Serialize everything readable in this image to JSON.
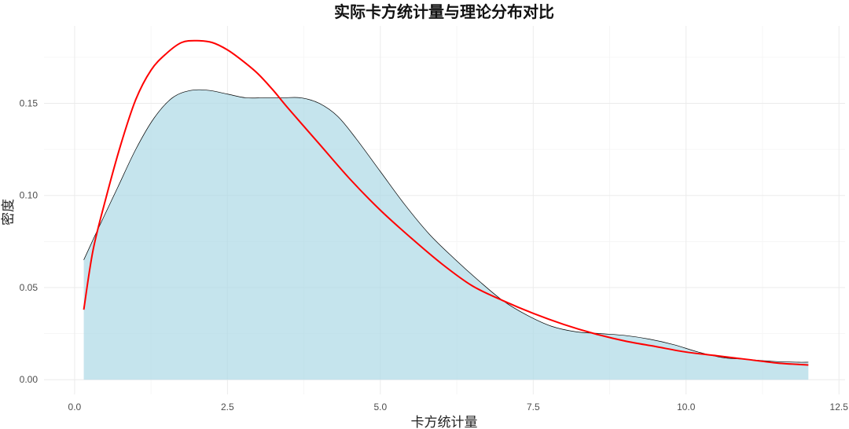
{
  "chart_data": {
    "type": "area",
    "title": "实际卡方统计量与理论分布对比",
    "xlabel": "卡方统计量",
    "ylabel": "密度",
    "xlim": [
      -0.5,
      12.6
    ],
    "ylim": [
      -0.008,
      0.192
    ],
    "x_ticks": [
      0.0,
      2.5,
      5.0,
      7.5,
      10.0,
      12.5
    ],
    "x_tick_labels": [
      "0.0",
      "2.5",
      "5.0",
      "7.5",
      "10.0",
      "12.5"
    ],
    "y_ticks": [
      0.0,
      0.05,
      0.1,
      0.15
    ],
    "y_tick_labels": [
      "0.00",
      "0.05",
      "0.10",
      "0.15"
    ],
    "grid": true,
    "colors": {
      "fill": "#add8e6",
      "outline": "#000000",
      "theory": "#ff0000"
    },
    "series": [
      {
        "kind": "density-area",
        "x": [
          0.15,
          0.4,
          0.7,
          1.0,
          1.3,
          1.6,
          1.9,
          2.2,
          2.5,
          2.8,
          3.1,
          3.4,
          3.7,
          4.0,
          4.3,
          4.6,
          5.0,
          5.4,
          5.8,
          6.2,
          6.6,
          7.0,
          7.4,
          7.8,
          8.2,
          8.6,
          9.0,
          9.4,
          9.8,
          10.2,
          10.6,
          11.0,
          11.4,
          11.8,
          12.0
        ],
        "y": [
          0.065,
          0.083,
          0.104,
          0.125,
          0.142,
          0.153,
          0.157,
          0.157,
          0.155,
          0.153,
          0.153,
          0.153,
          0.153,
          0.15,
          0.143,
          0.131,
          0.113,
          0.095,
          0.079,
          0.066,
          0.054,
          0.043,
          0.035,
          0.029,
          0.026,
          0.025,
          0.024,
          0.022,
          0.019,
          0.015,
          0.012,
          0.011,
          0.01,
          0.0095,
          0.0095
        ]
      },
      {
        "kind": "theory-line",
        "x": [
          0.15,
          0.3,
          0.5,
          0.75,
          1.0,
          1.25,
          1.5,
          1.75,
          2.0,
          2.25,
          2.5,
          2.75,
          3.0,
          3.25,
          3.5,
          4.0,
          4.5,
          5.0,
          5.5,
          6.0,
          6.5,
          7.0,
          7.5,
          8.0,
          8.5,
          9.0,
          9.5,
          10.0,
          10.5,
          11.0,
          11.5,
          12.0
        ],
        "y": [
          0.038,
          0.07,
          0.097,
          0.127,
          0.152,
          0.168,
          0.177,
          0.183,
          0.184,
          0.183,
          0.179,
          0.173,
          0.166,
          0.157,
          0.147,
          0.128,
          0.109,
          0.092,
          0.077,
          0.063,
          0.051,
          0.043,
          0.036,
          0.03,
          0.025,
          0.021,
          0.018,
          0.015,
          0.013,
          0.011,
          0.009,
          0.008
        ]
      }
    ]
  }
}
